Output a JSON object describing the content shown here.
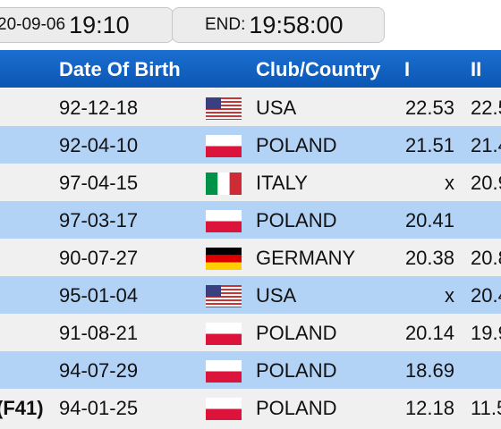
{
  "top": {
    "start_value": "20-09-06",
    "start_time": "19:10",
    "end_label": "END:",
    "end_time": "19:58:00"
  },
  "table": {
    "headers": {
      "dob": "Date Of Birth",
      "country": "Club/Country",
      "round1": "I",
      "round2": "II"
    },
    "rows": [
      {
        "class_label": "",
        "dob": "92-12-18",
        "flag": "usa-flag",
        "country": "USA",
        "r1": "22.53",
        "r2": "22.5"
      },
      {
        "class_label": "",
        "dob": "92-04-10",
        "flag": "poland-flag",
        "country": "POLAND",
        "r1": "21.51",
        "r2": "21.4"
      },
      {
        "class_label": "",
        "dob": "97-04-15",
        "flag": "italy-flag",
        "country": "ITALY",
        "r1": "x",
        "r2": "20.9"
      },
      {
        "class_label": "",
        "dob": "97-03-17",
        "flag": "poland-flag",
        "country": "POLAND",
        "r1": "20.41",
        "r2": ""
      },
      {
        "class_label": "",
        "dob": "90-07-27",
        "flag": "germany-flag",
        "country": "GERMANY",
        "r1": "20.38",
        "r2": "20.8"
      },
      {
        "class_label": "",
        "dob": "95-01-04",
        "flag": "usa-flag",
        "country": "USA",
        "r1": "x",
        "r2": "20.4"
      },
      {
        "class_label": "",
        "dob": "91-08-21",
        "flag": "poland-flag",
        "country": "POLAND",
        "r1": "20.14",
        "r2": "19.9"
      },
      {
        "class_label": "",
        "dob": "94-07-29",
        "flag": "poland-flag",
        "country": "POLAND",
        "r1": "18.69",
        "r2": ""
      },
      {
        "class_label": "(F41)",
        "dob": "94-01-25",
        "flag": "poland-flag",
        "country": "POLAND",
        "r1": "12.18",
        "r2": "11.5"
      }
    ]
  },
  "colors": {
    "header_blue": "#0b56b5",
    "row_light": "#f0f0f0",
    "row_blue": "#b3d3f6"
  }
}
